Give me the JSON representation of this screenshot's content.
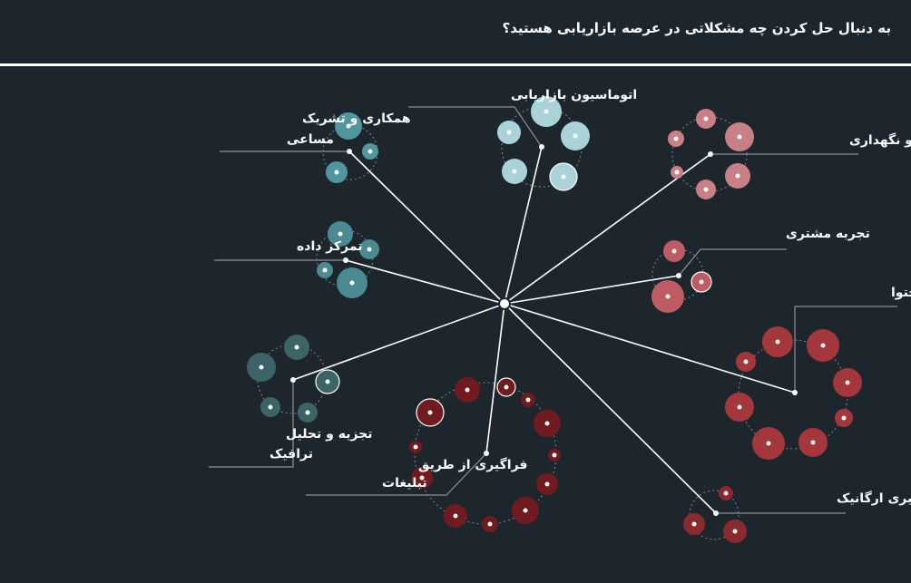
{
  "header": {
    "question": "به دنبال حل کردن چه مشکلاتی در عرصه بازاریابی هستید؟"
  },
  "colors": {
    "background": "#1e262d",
    "teal_light": "#a9d3d8",
    "teal": "#4f969e",
    "teal_dark": "#3c6466",
    "pink": "#c97f86",
    "red_pink": "#bf5b63",
    "red": "#a3373b",
    "dark_red": "#6f1b1f",
    "line": "#ffffff"
  },
  "nodes": [
    {
      "id": "collaboration",
      "lines": [
        "همکاری و تشریک",
        "مساعی"
      ]
    },
    {
      "id": "automation",
      "lines": [
        "اتوماسیون بازاریابی"
      ]
    },
    {
      "id": "retention",
      "lines": [
        "حفظ و نگهداری"
      ]
    },
    {
      "id": "data-focus",
      "lines": [
        "تمرکز داده"
      ]
    },
    {
      "id": "customer-experience",
      "lines": [
        "تجربه مشتری"
      ]
    },
    {
      "id": "content-marketing",
      "lines": [
        "بازاریابی محتوا"
      ]
    },
    {
      "id": "traffic-analysis",
      "lines": [
        "تجزیه و تحلیل",
        "ترافیک"
      ]
    },
    {
      "id": "ad-reach",
      "lines": [
        "فراگیری از طریق",
        "تبلیغات"
      ]
    },
    {
      "id": "organic-reach",
      "lines": [
        "فراگیری ارگانیک"
      ]
    }
  ]
}
